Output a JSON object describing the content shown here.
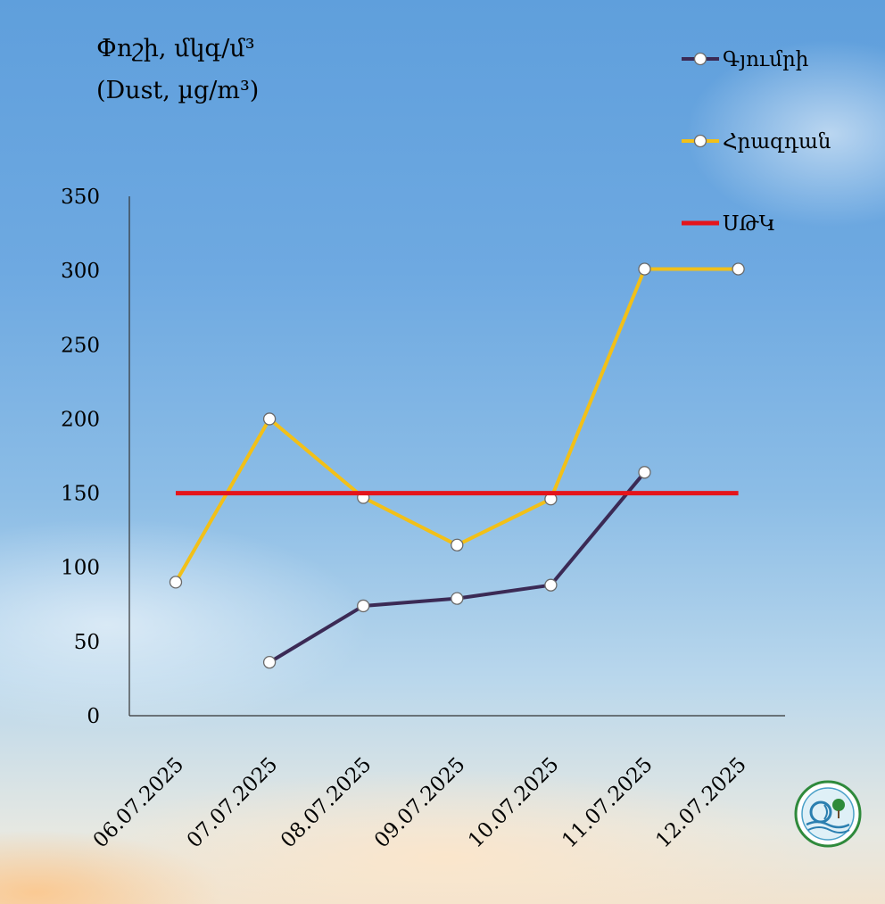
{
  "chart_data": {
    "type": "line",
    "title": "Փոշի, մկգ/մ³",
    "subtitle": "(Dust, µg/m³)",
    "categories": [
      "06.07.2025",
      "07.07.2025",
      "08.07.2025",
      "09.07.2025",
      "10.07.2025",
      "11.07.2025",
      "12.07.2025"
    ],
    "ylim": [
      0,
      350
    ],
    "yticks": [
      0,
      50,
      100,
      150,
      200,
      250,
      300,
      350
    ],
    "grid": false,
    "legend_position": "top-right",
    "series": [
      {
        "name": "Գյումրի",
        "color": "#3b2a55",
        "values": [
          null,
          36,
          74,
          79,
          88,
          164,
          null
        ]
      },
      {
        "name": "Հրազդան",
        "color": "#f2c018",
        "values": [
          90,
          200,
          147,
          115,
          146,
          301,
          301
        ]
      },
      {
        "name": "ՍԹԿ",
        "color": "#e4141b",
        "values": [
          150,
          150,
          150,
          150,
          150,
          150,
          150
        ],
        "markers": false
      }
    ]
  },
  "icons": {
    "logo": "logo-emblem"
  }
}
